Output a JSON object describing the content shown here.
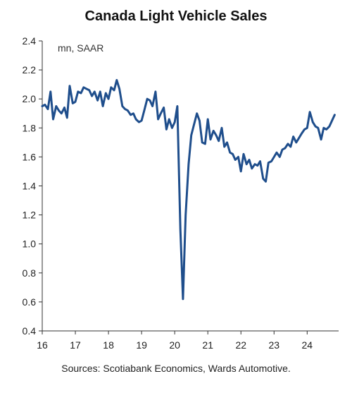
{
  "chart_data": {
    "type": "line",
    "title": "Canada Light Vehicle Sales",
    "units_label": "mn, SAAR",
    "source": "Sources: Scotiabank Economics, Wards Automotive.",
    "xlabel": "",
    "ylabel": "",
    "ylim": [
      0.4,
      2.4
    ],
    "y_ticks": [
      "0.4",
      "0.6",
      "0.8",
      "1.0",
      "1.2",
      "1.4",
      "1.6",
      "1.8",
      "2.0",
      "2.2",
      "2.4"
    ],
    "x_ticks": [
      "16",
      "17",
      "18",
      "19",
      "20",
      "21",
      "22",
      "23",
      "24"
    ],
    "xlim": [
      2016.0,
      2024.95
    ],
    "grid": false,
    "line_color": "#1f4e8c",
    "series": [
      {
        "x": [
          2016.0,
          2016.08,
          2016.17,
          2016.25,
          2016.33,
          2016.42,
          2016.5,
          2016.58,
          2016.67,
          2016.75,
          2016.83,
          2016.92,
          2017.0,
          2017.08,
          2017.17,
          2017.25,
          2017.33,
          2017.42,
          2017.5,
          2017.58,
          2017.67,
          2017.75,
          2017.83,
          2017.92,
          2018.0,
          2018.08,
          2018.17,
          2018.25,
          2018.33,
          2018.42,
          2018.5,
          2018.58,
          2018.67,
          2018.75,
          2018.83,
          2018.92,
          2019.0,
          2019.08,
          2019.17,
          2019.25,
          2019.33,
          2019.42,
          2019.5,
          2019.58,
          2019.67,
          2019.75,
          2019.83,
          2019.92,
          2020.0,
          2020.08,
          2020.17,
          2020.25,
          2020.33,
          2020.42,
          2020.5,
          2020.58,
          2020.67,
          2020.75,
          2020.83,
          2020.92,
          2021.0,
          2021.08,
          2021.17,
          2021.25,
          2021.33,
          2021.42,
          2021.5,
          2021.58,
          2021.67,
          2021.75,
          2021.83,
          2021.92,
          2022.0,
          2022.08,
          2022.17,
          2022.25,
          2022.33,
          2022.42,
          2022.5,
          2022.58,
          2022.67,
          2022.75,
          2022.83,
          2022.92,
          2023.0,
          2023.08,
          2023.17,
          2023.25,
          2023.33,
          2023.42,
          2023.5,
          2023.58,
          2023.67,
          2023.75,
          2023.83,
          2023.92,
          2024.0,
          2024.08,
          2024.17,
          2024.25,
          2024.33,
          2024.42,
          2024.5,
          2024.58,
          2024.67,
          2024.75,
          2024.83
        ],
        "values": [
          1.95,
          1.96,
          1.93,
          2.05,
          1.86,
          1.95,
          1.92,
          1.9,
          1.94,
          1.87,
          2.09,
          1.97,
          1.98,
          2.05,
          2.04,
          2.08,
          2.07,
          2.06,
          2.02,
          2.05,
          1.99,
          2.05,
          1.95,
          2.04,
          2.0,
          2.08,
          2.06,
          2.13,
          2.07,
          1.95,
          1.93,
          1.92,
          1.89,
          1.9,
          1.86,
          1.84,
          1.85,
          1.92,
          2.0,
          1.99,
          1.95,
          2.05,
          1.86,
          1.9,
          1.94,
          1.79,
          1.86,
          1.8,
          1.84,
          1.95,
          1.1,
          0.62,
          1.2,
          1.55,
          1.75,
          1.82,
          1.9,
          1.85,
          1.7,
          1.69,
          1.86,
          1.72,
          1.78,
          1.75,
          1.71,
          1.8,
          1.67,
          1.7,
          1.63,
          1.62,
          1.58,
          1.6,
          1.5,
          1.62,
          1.55,
          1.58,
          1.52,
          1.55,
          1.54,
          1.57,
          1.45,
          1.43,
          1.56,
          1.57,
          1.6,
          1.63,
          1.6,
          1.65,
          1.66,
          1.69,
          1.67,
          1.74,
          1.7,
          1.73,
          1.76,
          1.79,
          1.8,
          1.91,
          1.84,
          1.81,
          1.8,
          1.72,
          1.8,
          1.79,
          1.81,
          1.85,
          1.89
        ]
      }
    ]
  }
}
